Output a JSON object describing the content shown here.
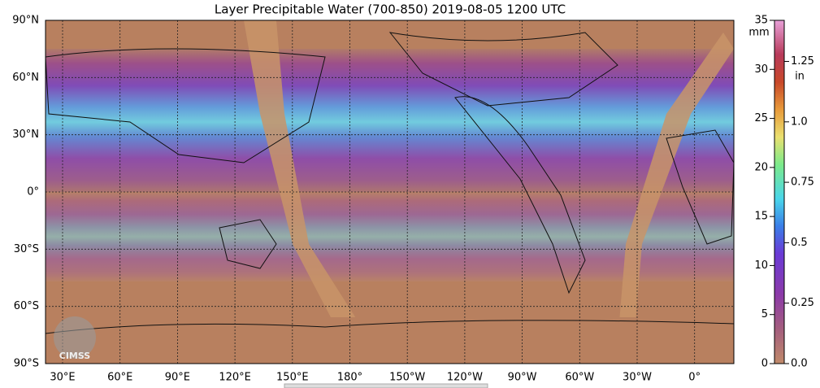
{
  "title": "Layer Precipitable Water (700-850)  2019-08-05 1200 UTC",
  "map": {
    "lat_labels": [
      "90°N",
      "60°N",
      "30°N",
      "0°",
      "30°S",
      "60°S",
      "90°S"
    ],
    "lon_labels": [
      "30°E",
      "60°E",
      "90°E",
      "120°E",
      "150°E",
      "180°",
      "150°W",
      "120°W",
      "90°W",
      "60°W",
      "30°W",
      "0°"
    ],
    "logo": "CIMSS"
  },
  "colorbar": {
    "mm_unit": "mm",
    "mm_ticks": [
      "0",
      "5",
      "10",
      "15",
      "20",
      "25",
      "30",
      "35"
    ],
    "in_unit": "in",
    "in_ticks": [
      "0.0",
      "0.25",
      "0.5",
      "0.75",
      "1.0",
      "1.25"
    ]
  }
}
